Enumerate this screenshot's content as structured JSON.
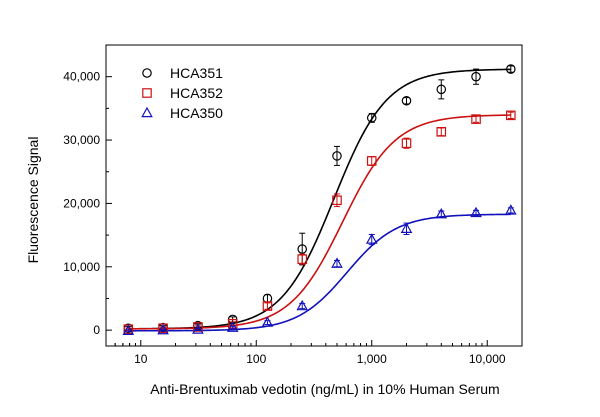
{
  "chart_data": {
    "type": "scatter",
    "title": "",
    "xlabel": "Anti-Brentuximab vedotin (ng/mL) in 10% Human Serum",
    "ylabel": "Fluorescence Signal",
    "x_scale": "log",
    "xlim": [
      5,
      20000
    ],
    "ylim": [
      -2500,
      45000
    ],
    "x_ticks": [
      10,
      100,
      1000,
      10000
    ],
    "x_tick_labels": [
      "10",
      "100",
      "1,000",
      "10,000"
    ],
    "y_ticks": [
      0,
      10000,
      20000,
      30000,
      40000
    ],
    "y_tick_labels": [
      "0",
      "10,000",
      "20,000",
      "30,000",
      "40,000"
    ],
    "grid": false,
    "legend_position": "top-left",
    "x": [
      7.8,
      15.6,
      31.25,
      62.5,
      125,
      250,
      500,
      1000,
      2000,
      4000,
      8000,
      16000
    ],
    "series": [
      {
        "name": "HCA351",
        "color": "#000000",
        "marker": "circle",
        "values": [
          300,
          400,
          700,
          1700,
          5000,
          12800,
          27500,
          33500,
          36200,
          38000,
          40000,
          41200
        ],
        "errors": [
          300,
          300,
          300,
          400,
          600,
          2500,
          1500,
          700,
          500,
          1500,
          1200,
          500
        ],
        "fit": {
          "bottom": 200,
          "top": 41200,
          "ec50": 470,
          "hill": 1.9
        }
      },
      {
        "name": "HCA352",
        "color": "#cc1111",
        "marker": "square",
        "values": [
          150,
          300,
          500,
          1000,
          3800,
          11200,
          20500,
          26700,
          29500,
          31300,
          33300,
          33900
        ],
        "errors": [
          200,
          200,
          300,
          300,
          500,
          800,
          1000,
          700,
          800,
          600,
          500,
          500
        ],
        "fit": {
          "bottom": 200,
          "top": 34000,
          "ec50": 560,
          "hill": 1.9
        }
      },
      {
        "name": "HCA350",
        "color": "#1111bb",
        "marker": "triangle",
        "values": [
          -100,
          0,
          100,
          400,
          1200,
          3800,
          10500,
          14300,
          16000,
          18300,
          18500,
          18900
        ],
        "errors": [
          150,
          150,
          150,
          200,
          300,
          400,
          500,
          800,
          900,
          500,
          400,
          400
        ],
        "fit": {
          "bottom": -100,
          "top": 18300,
          "ec50": 610,
          "hill": 2.0
        }
      }
    ]
  }
}
